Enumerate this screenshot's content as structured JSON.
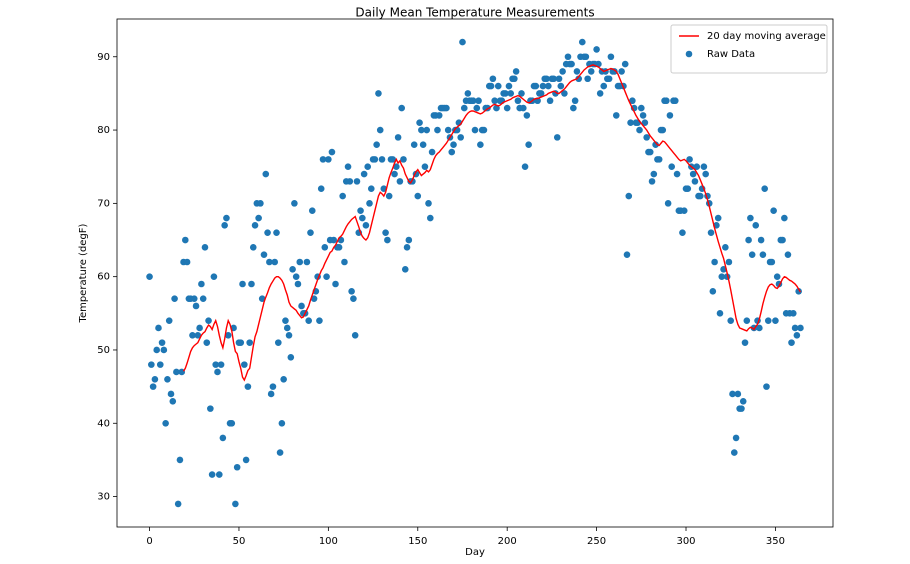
{
  "chart_data": {
    "type": "scatter",
    "title": "Daily Mean Temperature Measurements",
    "x_label": "Day",
    "y_label": "Temperature (degF)",
    "xlim": [
      -18.2,
      382.2
    ],
    "ylim": [
      25.85,
      95.15
    ],
    "xticks": [
      0,
      50,
      100,
      150,
      200,
      250,
      300,
      350
    ],
    "yticks": [
      30,
      40,
      50,
      60,
      70,
      80,
      90
    ],
    "legend": "upper right",
    "x": [
      0,
      1,
      2,
      3,
      4,
      5,
      6,
      7,
      8,
      9,
      10,
      11,
      12,
      13,
      14,
      15,
      16,
      17,
      18,
      19,
      20,
      21,
      22,
      23,
      24,
      25,
      26,
      27,
      28,
      29,
      30,
      31,
      32,
      33,
      34,
      35,
      36,
      37,
      38,
      39,
      40,
      41,
      42,
      43,
      44,
      45,
      46,
      47,
      48,
      49,
      50,
      51,
      52,
      53,
      54,
      55,
      56,
      57,
      58,
      59,
      60,
      61,
      62,
      63,
      64,
      65,
      66,
      67,
      68,
      69,
      70,
      71,
      72,
      73,
      74,
      75,
      76,
      77,
      78,
      79,
      80,
      81,
      82,
      83,
      84,
      85,
      86,
      87,
      88,
      89,
      90,
      91,
      92,
      93,
      94,
      95,
      96,
      97,
      98,
      99,
      100,
      101,
      102,
      103,
      104,
      105,
      106,
      107,
      108,
      109,
      110,
      111,
      112,
      113,
      114,
      115,
      116,
      117,
      118,
      119,
      120,
      121,
      122,
      123,
      124,
      125,
      126,
      127,
      128,
      129,
      130,
      131,
      132,
      133,
      134,
      135,
      136,
      137,
      138,
      139,
      140,
      141,
      142,
      143,
      144,
      145,
      146,
      147,
      148,
      149,
      150,
      151,
      152,
      153,
      154,
      155,
      156,
      157,
      158,
      159,
      160,
      161,
      162,
      163,
      164,
      165,
      166,
      167,
      168,
      169,
      170,
      171,
      172,
      173,
      174,
      175,
      176,
      177,
      178,
      179,
      180,
      181,
      182,
      183,
      184,
      185,
      186,
      187,
      188,
      189,
      190,
      191,
      192,
      193,
      194,
      195,
      196,
      197,
      198,
      199,
      200,
      201,
      202,
      203,
      204,
      205,
      206,
      207,
      208,
      209,
      210,
      211,
      212,
      213,
      214,
      215,
      216,
      217,
      218,
      219,
      220,
      221,
      222,
      223,
      224,
      225,
      226,
      227,
      228,
      229,
      230,
      231,
      232,
      233,
      234,
      235,
      236,
      237,
      238,
      239,
      240,
      241,
      242,
      243,
      244,
      245,
      246,
      247,
      248,
      249,
      250,
      251,
      252,
      253,
      254,
      255,
      256,
      257,
      258,
      259,
      260,
      261,
      262,
      263,
      264,
      265,
      266,
      267,
      268,
      269,
      270,
      271,
      272,
      273,
      274,
      275,
      276,
      277,
      278,
      279,
      280,
      281,
      282,
      283,
      284,
      285,
      286,
      287,
      288,
      289,
      290,
      291,
      292,
      293,
      294,
      295,
      296,
      297,
      298,
      299,
      300,
      301,
      302,
      303,
      304,
      305,
      306,
      307,
      308,
      309,
      310,
      311,
      312,
      313,
      314,
      315,
      316,
      317,
      318,
      319,
      320,
      321,
      322,
      323,
      324,
      325,
      326,
      327,
      328,
      329,
      330,
      331,
      332,
      333,
      334,
      335,
      336,
      337,
      338,
      339,
      340,
      341,
      342,
      343,
      344,
      345,
      346,
      347,
      348,
      349,
      350,
      351,
      352,
      353,
      354,
      355,
      356,
      357,
      358,
      359,
      360,
      361,
      362,
      363,
      364
    ],
    "series": [
      {
        "name": "20 day moving average",
        "kind": "line",
        "color": "#ff0000",
        "values": [
          null,
          null,
          null,
          null,
          null,
          null,
          null,
          null,
          null,
          null,
          null,
          null,
          null,
          null,
          null,
          null,
          null,
          null,
          null,
          47.1,
          47.5,
          48.2,
          49.0,
          49.8,
          50.3,
          50.6,
          50.8,
          51.0,
          51.5,
          52.0,
          52.3,
          52.5,
          53.0,
          53.4,
          53.2,
          52.8,
          53.5,
          54.0,
          53.2,
          52.0,
          51.0,
          50.3,
          51.5,
          53.0,
          54.0,
          53.5,
          52.6,
          51.0,
          49.8,
          49.5,
          48.4,
          47.5,
          46.3,
          45.9,
          46.5,
          47.2,
          47.5,
          49.0,
          50.5,
          51.8,
          52.5,
          53.5,
          54.5,
          55.5,
          56.5,
          57.2,
          57.8,
          58.5,
          59.0,
          59.4,
          59.8,
          60.0,
          60.0,
          59.8,
          59.5,
          59.0,
          58.2,
          57.5,
          56.5,
          56.0,
          55.8,
          55.6,
          55.4,
          55.0,
          54.7,
          54.4,
          54.5,
          55.0,
          55.5,
          56.0,
          56.8,
          57.5,
          58.2,
          58.9,
          59.6,
          60.2,
          60.8,
          61.2,
          61.8,
          62.3,
          62.8,
          63.3,
          63.5,
          64.0,
          64.3,
          64.8,
          65.3,
          65.5,
          65.8,
          66.3,
          66.8,
          67.2,
          67.5,
          67.8,
          68.0,
          68.2,
          67.5,
          66.8,
          66.0,
          65.5,
          65.2,
          65.0,
          65.3,
          66.0,
          67.0,
          68.0,
          69.0,
          70.0,
          71.0,
          71.5,
          71.3,
          71.0,
          71.5,
          72.5,
          73.5,
          74.2,
          74.8,
          75.5,
          76.0,
          75.5,
          75.8,
          75.2,
          74.8,
          74.0,
          73.5,
          73.0,
          72.8,
          73.2,
          73.8,
          74.3,
          74.6,
          74.2,
          73.8,
          74.0,
          74.2,
          74.5,
          74.3,
          74.6,
          75.3,
          76.0,
          76.5,
          76.8,
          77.0,
          77.3,
          77.6,
          77.9,
          78.2,
          78.6,
          79.0,
          79.4,
          79.8,
          80.2,
          80.4,
          80.6,
          80.8,
          81.2,
          81.6,
          82.0,
          82.3,
          82.5,
          82.6,
          82.6,
          82.5,
          82.4,
          82.3,
          82.2,
          82.3,
          82.5,
          82.7,
          82.9,
          83.0,
          83.2,
          83.4,
          83.5,
          83.4,
          83.3,
          83.4,
          83.6,
          83.8,
          83.9,
          84.0,
          84.1,
          84.2,
          84.4,
          84.5,
          84.6,
          84.7,
          84.6,
          84.4,
          84.2,
          84.0,
          83.8,
          83.7,
          83.8,
          84.0,
          84.2,
          84.3,
          84.3,
          84.4,
          84.5,
          84.6,
          84.7,
          84.8,
          85.0,
          85.1,
          85.2,
          85.3,
          85.2,
          85.0,
          85.0,
          85.2,
          85.4,
          85.6,
          85.9,
          86.2,
          86.5,
          86.7,
          86.8,
          86.9,
          87.0,
          87.3,
          87.6,
          87.9,
          88.2,
          88.4,
          88.6,
          88.7,
          88.8,
          88.9,
          88.8,
          88.7,
          88.6,
          88.4,
          88.2,
          88.0,
          88.1,
          88.2,
          88.3,
          88.4,
          88.3,
          88.2,
          88.0,
          87.6,
          87.0,
          86.4,
          85.8,
          85.2,
          84.6,
          84.0,
          83.5,
          83.0,
          82.5,
          82.0,
          81.6,
          81.2,
          80.9,
          80.6,
          80.3,
          80.0,
          79.6,
          79.2,
          78.9,
          78.6,
          78.3,
          78.0,
          77.9,
          78.2,
          78.5,
          78.4,
          78.1,
          77.8,
          77.5,
          77.2,
          76.9,
          76.6,
          76.3,
          76.0,
          75.8,
          75.9,
          76.0,
          75.8,
          75.5,
          75.2,
          75.0,
          74.8,
          74.6,
          74.2,
          73.8,
          73.2,
          72.6,
          72.0,
          71.3,
          70.5,
          69.6,
          68.6,
          67.6,
          66.6,
          65.7,
          64.8,
          64.0,
          63.2,
          62.5,
          61.5,
          60.5,
          59.4,
          58.2,
          56.9,
          55.6,
          54.3,
          53.5,
          53.0,
          52.9,
          52.8,
          52.7,
          52.6,
          52.9,
          53.1,
          53.0,
          52.8,
          53.2,
          53.5,
          54.2,
          55.2,
          56.3,
          57.2,
          58.0,
          58.6,
          58.9,
          59.0,
          58.8,
          58.5,
          58.4,
          58.7,
          59.2,
          59.7,
          60.0,
          59.9,
          59.7,
          59.5,
          59.4,
          59.2,
          59.0,
          58.7,
          58.3,
          57.9
        ]
      },
      {
        "name": "Raw Data",
        "kind": "scatter",
        "color": "#1f77b4",
        "values": [
          60,
          48,
          45,
          46,
          50,
          53,
          48,
          51,
          50,
          40,
          46,
          54,
          44,
          43,
          57,
          47,
          29,
          35,
          47,
          62,
          65,
          62,
          57,
          57,
          52,
          57,
          56,
          52,
          53,
          59,
          57,
          64,
          51,
          54,
          42,
          33,
          60,
          48,
          47,
          33,
          48,
          38,
          67,
          68,
          52,
          40,
          40,
          53,
          29,
          34,
          51,
          51,
          59,
          48,
          35,
          45,
          51,
          59,
          64,
          67,
          70,
          68,
          70,
          57,
          63,
          74,
          66,
          62,
          44,
          45,
          62,
          66,
          51,
          36,
          40,
          46,
          54,
          53,
          52,
          49,
          61,
          70,
          60,
          59,
          62,
          56,
          55,
          55,
          62,
          54,
          66,
          69,
          57,
          58,
          60,
          54,
          72,
          76,
          64,
          60,
          76,
          65,
          77,
          65,
          59,
          64,
          64,
          65,
          71,
          62,
          73,
          75,
          73,
          58,
          57,
          52,
          73,
          66,
          69,
          68,
          74,
          67,
          75,
          70,
          72,
          76,
          76,
          78,
          85,
          80,
          76,
          72,
          66,
          65,
          71,
          76,
          76,
          74,
          75,
          79,
          73,
          83,
          76,
          61,
          64,
          65,
          73,
          73,
          78,
          74,
          71,
          81,
          80,
          78,
          75,
          80,
          70,
          68,
          77,
          82,
          82,
          80,
          82,
          83,
          83,
          83,
          83,
          80,
          79,
          77,
          78,
          80,
          80,
          81,
          79,
          92,
          83,
          84,
          85,
          84,
          84,
          84,
          80,
          83,
          84,
          78,
          80,
          80,
          83,
          83,
          86,
          86,
          87,
          84,
          83,
          86,
          84,
          84,
          85,
          85,
          83,
          86,
          85,
          87,
          87,
          88,
          84,
          83,
          85,
          83,
          75,
          82,
          78,
          84,
          84,
          86,
          86,
          84,
          85,
          85,
          86,
          87,
          87,
          86,
          84,
          87,
          87,
          85,
          79,
          87,
          86,
          88,
          85,
          89,
          90,
          89,
          89,
          83,
          84,
          88,
          87,
          90,
          92,
          90,
          90,
          87,
          89,
          88,
          89,
          89,
          91,
          89,
          85,
          88,
          86,
          88,
          87,
          87,
          90,
          88,
          88,
          82,
          86,
          86,
          88,
          86,
          89,
          63,
          71,
          81,
          84,
          83,
          81,
          81,
          80,
          83,
          82,
          81,
          79,
          77,
          77,
          73,
          74,
          78,
          76,
          76,
          80,
          80,
          84,
          84,
          70,
          82,
          75,
          84,
          84,
          74,
          69,
          69,
          66,
          69,
          72,
          72,
          76,
          75,
          74,
          73,
          75,
          71,
          71,
          72,
          75,
          74,
          71,
          70,
          66,
          58,
          62,
          67,
          68,
          55,
          60,
          61,
          64,
          60,
          62,
          54,
          44,
          36,
          38,
          44,
          42,
          42,
          43,
          51,
          54,
          65,
          68,
          63,
          53,
          67,
          54,
          53,
          65,
          63,
          72,
          45,
          54,
          62,
          62,
          69,
          54,
          60,
          59,
          65,
          65,
          68,
          55,
          63,
          55,
          51,
          55,
          53,
          52,
          58,
          53
        ]
      }
    ]
  }
}
